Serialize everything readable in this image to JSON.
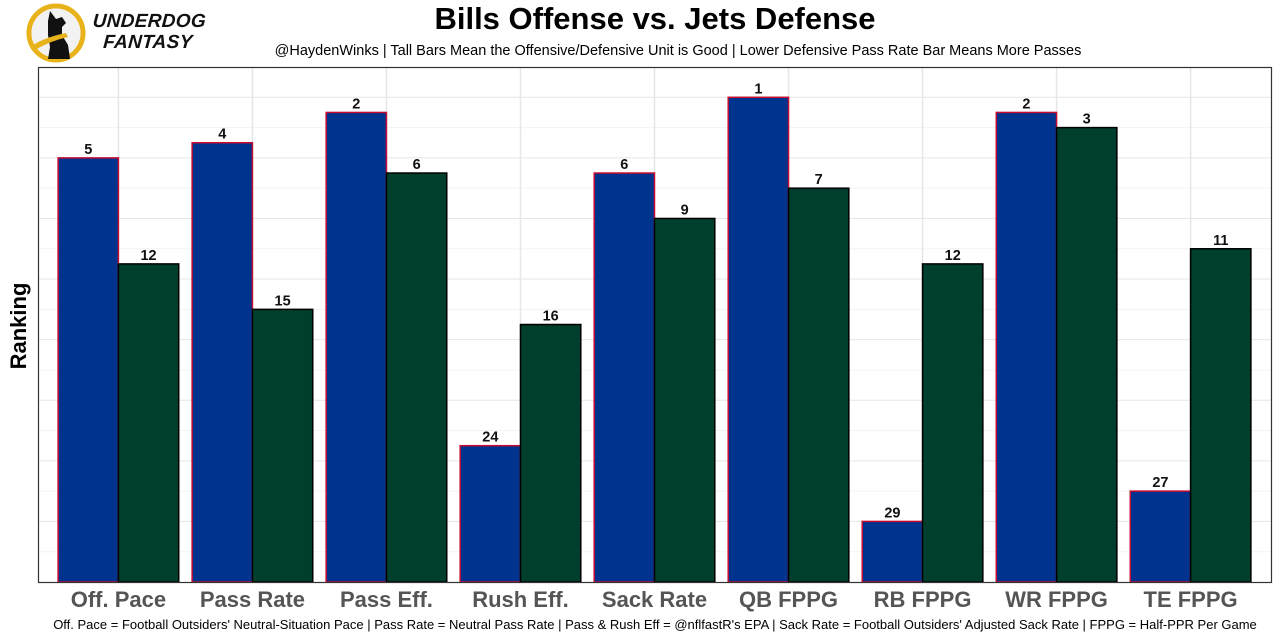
{
  "logo": {
    "icon": "underdog-dog-icon",
    "line1": "UNDERDOG",
    "line2": "FANTASY",
    "ring_color": "#E8B21A"
  },
  "chart_data": {
    "type": "bar",
    "title": "Bills Offense vs. Jets Defense",
    "subtitle": "@HaydenWinks | Tall Bars Mean the Offensive/Defensive Unit is Good | Lower Defensive Pass Rate Bar Means More Passes",
    "xlabel": "",
    "ylabel": "Ranking",
    "footnote": "Off. Pace = Football Outsiders' Neutral-Situation Pace | Pass Rate = Neutral Pass Rate | Pass & Rush Eff = @nflfastR's EPA | Sack Rate = Football Outsiders' Adjusted Sack Rate | FPPG = Half-PPR Per Game",
    "categories": [
      "Off. Pace",
      "Pass Rate",
      "Pass Eff.",
      "Rush Eff.",
      "Sack Rate",
      "QB FPPG",
      "RB FPPG",
      "WR FPPG",
      "TE FPPG"
    ],
    "series": [
      {
        "name": "Bills Offense",
        "values": [
          5,
          4,
          2,
          24,
          6,
          1,
          29,
          2,
          27
        ],
        "fill": "#00338D",
        "stroke": "#C60C30"
      },
      {
        "name": "Jets Defense",
        "values": [
          12,
          15,
          6,
          16,
          9,
          7,
          12,
          3,
          11
        ],
        "fill": "#003F2D",
        "stroke": "#000000"
      }
    ],
    "value_transform": "bar height = 33 - ranking",
    "ylim": [
      0,
      34
    ],
    "y_ticks_hidden": true,
    "grid": true,
    "legend": "none"
  }
}
